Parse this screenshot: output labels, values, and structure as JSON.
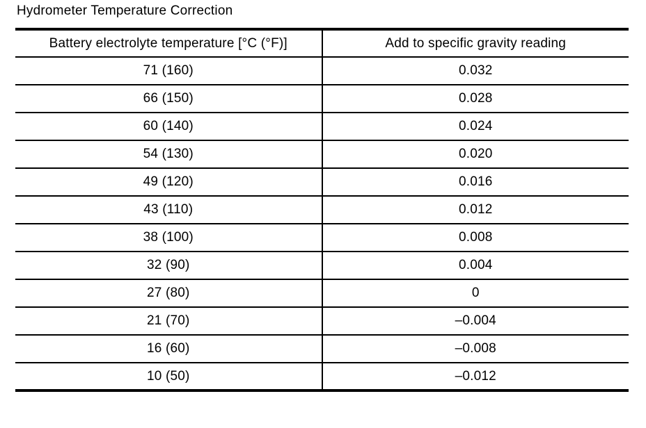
{
  "title": "Hydrometer Temperature Correction",
  "table": {
    "headers": [
      "Battery electrolyte temperature [°C (°F)]",
      "Add to specific gravity reading"
    ],
    "rows": [
      [
        "71 (160)",
        "0.032"
      ],
      [
        "66 (150)",
        "0.028"
      ],
      [
        "60 (140)",
        "0.024"
      ],
      [
        "54 (130)",
        "0.020"
      ],
      [
        "49 (120)",
        "0.016"
      ],
      [
        "43 (110)",
        "0.012"
      ],
      [
        "38 (100)",
        "0.008"
      ],
      [
        "32 (90)",
        "0.004"
      ],
      [
        "27 (80)",
        "0"
      ],
      [
        "21 (70)",
        "–0.004"
      ],
      [
        "16 (60)",
        "–0.008"
      ],
      [
        "10 (50)",
        "–0.012"
      ]
    ]
  },
  "chart_data": {
    "type": "table",
    "title": "Hydrometer Temperature Correction",
    "columns": [
      "Battery electrolyte temperature [°C (°F)]",
      "Add to specific gravity reading"
    ],
    "rows": [
      [
        "71 (160)",
        0.032
      ],
      [
        "66 (150)",
        0.028
      ],
      [
        "60 (140)",
        0.024
      ],
      [
        "54 (130)",
        0.02
      ],
      [
        "49 (120)",
        0.016
      ],
      [
        "43 (110)",
        0.012
      ],
      [
        "38 (100)",
        0.008
      ],
      [
        "32 (90)",
        0.004
      ],
      [
        "27 (80)",
        0
      ],
      [
        "21 (70)",
        -0.004
      ],
      [
        "16 (60)",
        -0.008
      ],
      [
        "10 (50)",
        -0.012
      ]
    ]
  },
  "colors": {
    "text": "#000000",
    "border": "#000000",
    "background": "#ffffff"
  }
}
